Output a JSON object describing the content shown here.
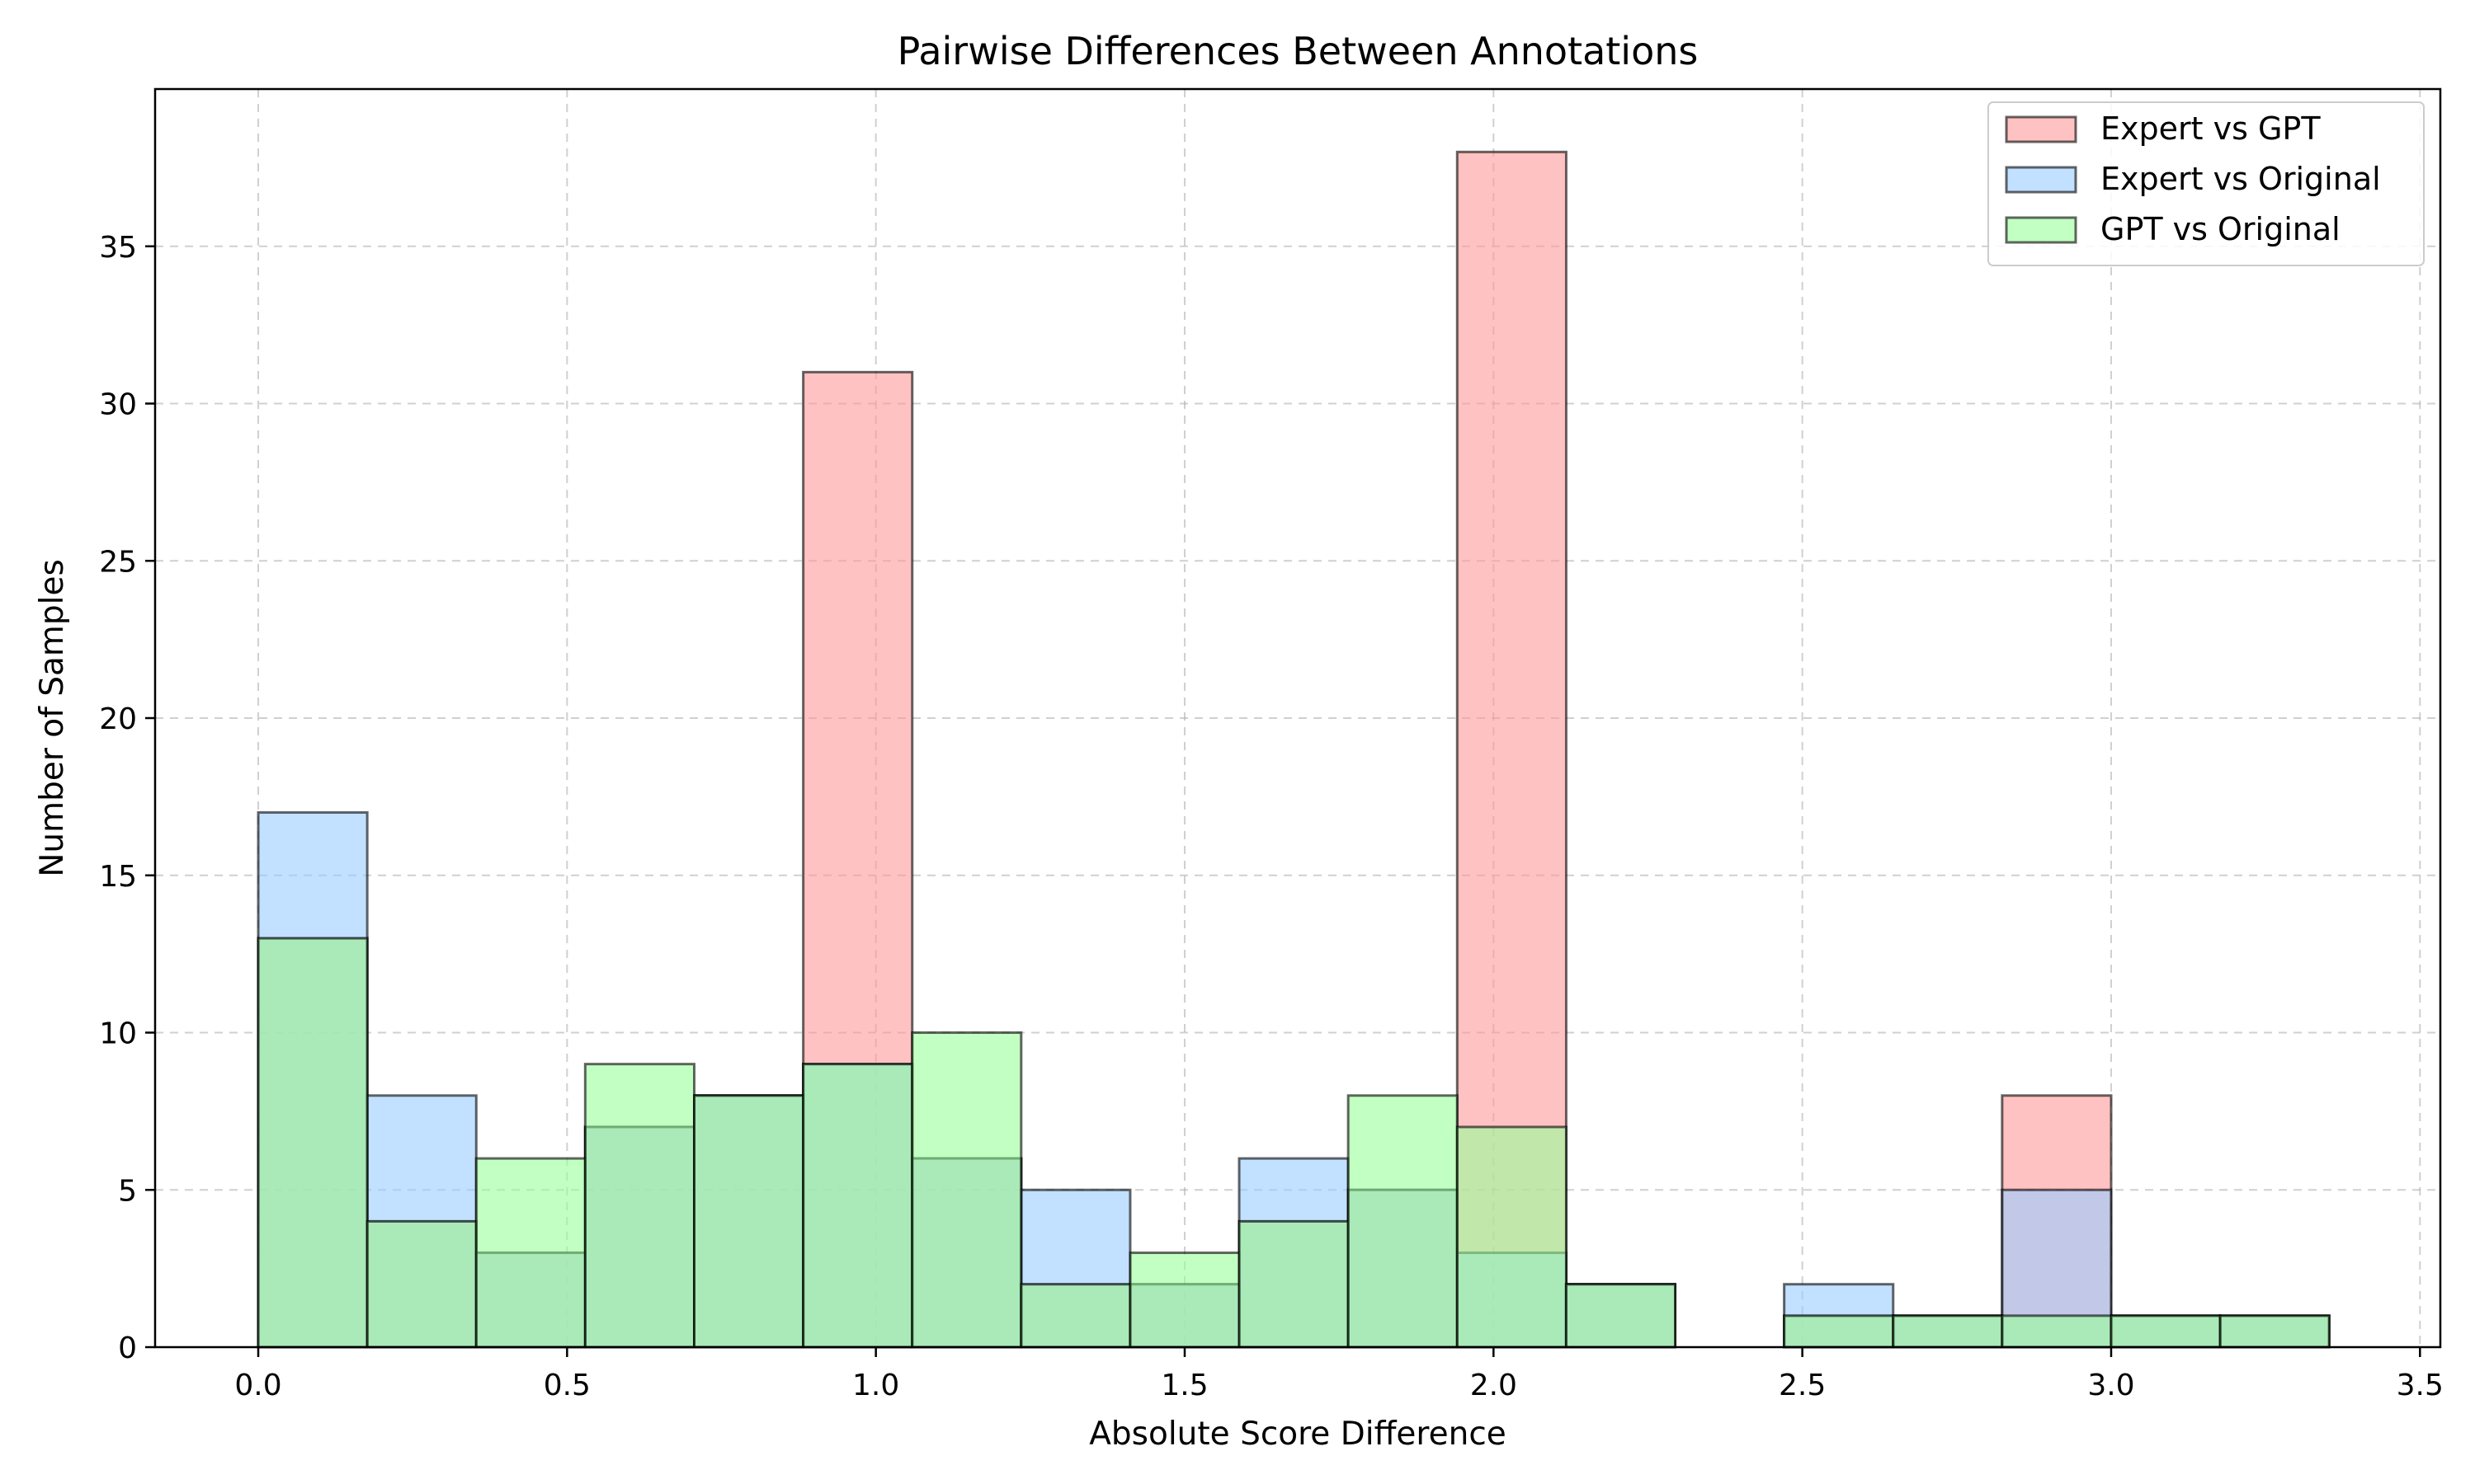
{
  "chart_data": {
    "type": "bar",
    "title": "Pairwise Differences Between Annotations",
    "xlabel": "Absolute Score Difference",
    "ylabel": "Number of Samples",
    "xlim": [
      -0.167,
      3.533
    ],
    "ylim": [
      0,
      40
    ],
    "xticks": [
      0.0,
      0.5,
      1.0,
      1.5,
      2.0,
      2.5,
      3.0,
      3.5
    ],
    "xtick_labels": [
      "0.0",
      "0.5",
      "1.0",
      "1.5",
      "2.0",
      "2.5",
      "3.0",
      "3.5"
    ],
    "yticks": [
      0,
      5,
      10,
      15,
      20,
      25,
      30,
      35
    ],
    "ytick_labels": [
      "0",
      "5",
      "10",
      "15",
      "20",
      "25",
      "30",
      "35"
    ],
    "grid": true,
    "legend_position": "top-right",
    "bin_edges": [
      0.0,
      0.1765,
      0.3529,
      0.5294,
      0.7059,
      0.8824,
      1.0588,
      1.2353,
      1.4118,
      1.5882,
      1.7647,
      1.9412,
      2.1176,
      2.2941,
      2.4706,
      2.6471,
      2.8235,
      3.0,
      3.1765,
      3.3529
    ],
    "series": [
      {
        "name": "Expert vs GPT",
        "color": "#ff9999",
        "values": [
          13,
          4,
          3,
          7,
          8,
          31,
          6,
          2,
          2,
          4,
          5,
          38,
          2,
          0,
          1,
          1,
          8,
          1,
          1
        ]
      },
      {
        "name": "Expert vs Original",
        "color": "#99ccff",
        "values": [
          17,
          8,
          3,
          7,
          8,
          9,
          6,
          5,
          2,
          6,
          5,
          3,
          2,
          0,
          2,
          1,
          5,
          1,
          1
        ]
      },
      {
        "name": "GPT vs Original",
        "color": "#99ff99",
        "values": [
          13,
          4,
          6,
          9,
          8,
          9,
          10,
          2,
          3,
          4,
          8,
          7,
          2,
          0,
          1,
          1,
          1,
          1,
          1
        ]
      }
    ]
  }
}
